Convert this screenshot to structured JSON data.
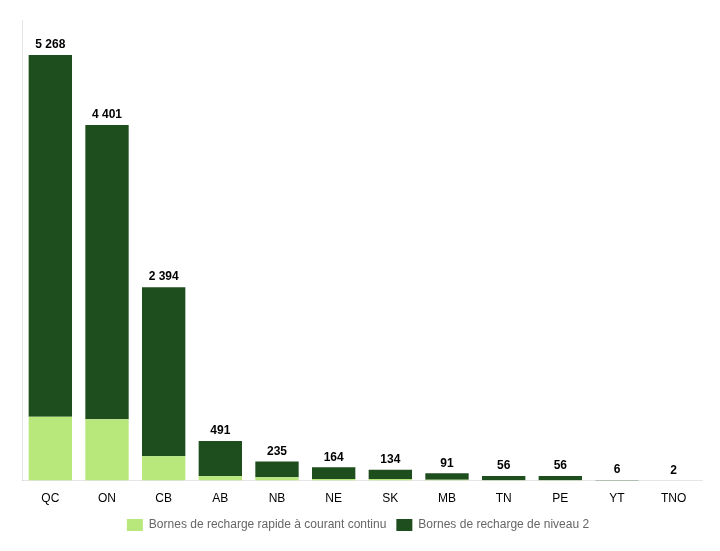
{
  "chart_data": {
    "type": "bar",
    "stacked": true,
    "categories": [
      "QC",
      "ON",
      "CB",
      "AB",
      "NB",
      "NE",
      "SK",
      "MB",
      "TN",
      "PE",
      "YT",
      "TNO"
    ],
    "series": [
      {
        "name": "Bornes de recharge rapide à courant continu",
        "color": "#b8e87c",
        "values": [
          790,
          760,
          300,
          55,
          40,
          20,
          20,
          10,
          5,
          5,
          1,
          1
        ]
      },
      {
        "name": "Bornes de recharge de niveau 2",
        "color": "#1e4d1e",
        "values": [
          4478,
          3641,
          2094,
          436,
          195,
          144,
          114,
          81,
          51,
          51,
          5,
          1
        ]
      }
    ],
    "annotations": [
      {
        "category": "QC",
        "value": 5268,
        "label": "5 268"
      },
      {
        "category": "ON",
        "value": 4401,
        "label": "4 401"
      },
      {
        "category": "CB",
        "value": 2394,
        "label": "2 394"
      },
      {
        "category": "AB",
        "value": 491,
        "label": "491"
      },
      {
        "category": "NB",
        "value": 235,
        "label": "235"
      },
      {
        "category": "NE",
        "value": 164,
        "label": "164"
      },
      {
        "category": "SK",
        "value": 134,
        "label": "134"
      },
      {
        "category": "MB",
        "value": 91,
        "label": "91"
      },
      {
        "category": "TN",
        "value": 56,
        "label": "56"
      },
      {
        "category": "PE",
        "value": 56,
        "label": "56"
      },
      {
        "category": "YT",
        "value": 6,
        "label": "6"
      },
      {
        "category": "TNO",
        "value": 2,
        "label": "2"
      }
    ],
    "ylim": [
      0,
      5700
    ],
    "grid": false,
    "legend": "bottom",
    "tick_labels": "x"
  }
}
